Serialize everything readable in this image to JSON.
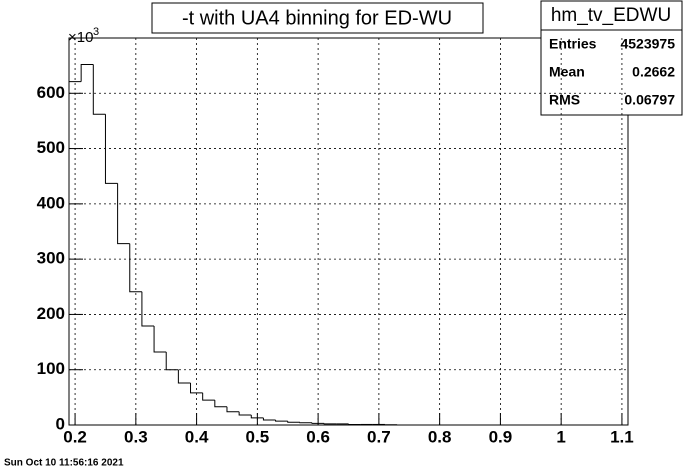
{
  "chart_data": {
    "type": "histogram",
    "title": "-t with UA4 binning for ED-WU",
    "y_multiplier": {
      "base": "×10",
      "exponent": "3"
    },
    "bins": [
      0.19,
      0.21,
      0.23,
      0.25,
      0.27,
      0.29,
      0.31,
      0.33,
      0.35,
      0.37,
      0.39,
      0.41,
      0.43,
      0.45,
      0.47,
      0.49,
      0.51,
      0.53,
      0.55,
      0.57,
      0.59,
      0.61,
      0.63,
      0.65,
      0.67,
      0.69,
      0.71,
      0.73,
      0.75,
      0.77,
      0.79,
      0.81,
      0.83,
      0.85,
      0.87,
      0.89,
      0.91,
      0.93,
      0.95,
      0.97,
      0.99,
      1.01,
      1.03,
      1.05,
      1.07,
      1.09,
      1.11
    ],
    "values": [
      621,
      652,
      562,
      437,
      328,
      241,
      179,
      132,
      100,
      76,
      58,
      45,
      33,
      24,
      18,
      13,
      9,
      7,
      5,
      4,
      3,
      2,
      2,
      1,
      1,
      1,
      0.5,
      0,
      0,
      0,
      0,
      0,
      0,
      0,
      0,
      0,
      0,
      0,
      0,
      0,
      0,
      0,
      0,
      0,
      0,
      0
    ],
    "color": "#000000",
    "xlim": [
      0.19,
      1.11
    ],
    "ylim": [
      0,
      700
    ],
    "xticks": [
      0.2,
      0.3,
      0.4,
      0.5,
      0.6,
      0.7,
      0.8,
      0.9,
      1,
      1.1
    ],
    "yticks": [
      0,
      100,
      200,
      300,
      400,
      500,
      600
    ],
    "grid": true,
    "stats": {
      "name": "hm_tv_EDWU",
      "rows": [
        {
          "label": "Entries",
          "value": 4523975
        },
        {
          "label": "Mean",
          "value": 0.2662
        },
        {
          "label": "RMS",
          "value": 0.06797
        }
      ]
    },
    "footer": "Sun Oct 10 11:56:16 2021"
  }
}
